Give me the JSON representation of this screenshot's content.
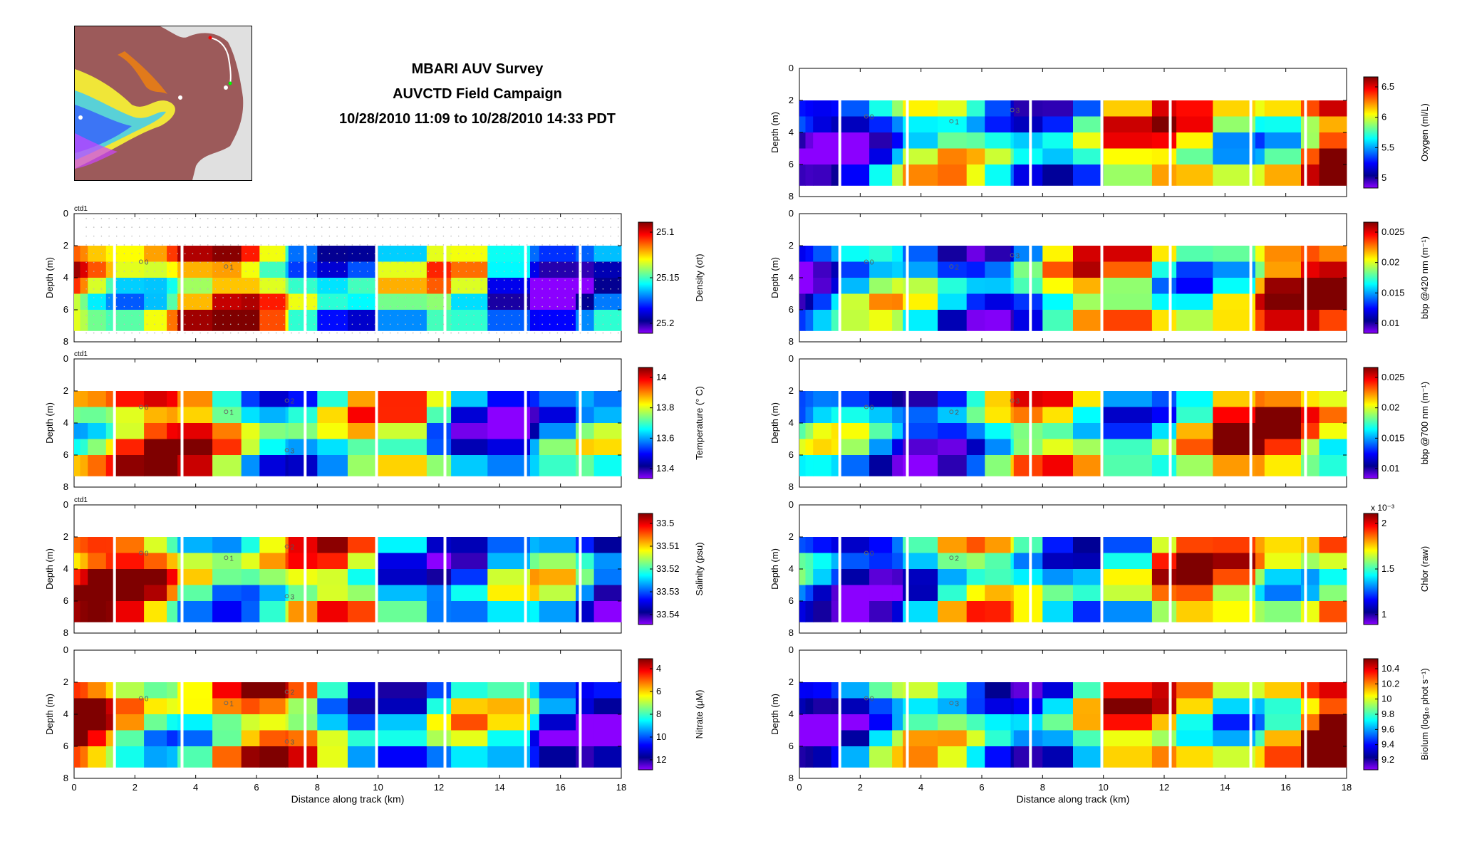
{
  "header": {
    "title_line1": "MBARI AUV Survey",
    "title_line2": "AUVCTD Field Campaign",
    "title_line3": "10/28/2010 11:09 to 10/28/2010 14:33 PDT"
  },
  "colors": {
    "colormap": [
      "#7f0000",
      "#ff0000",
      "#ff8000",
      "#ffff00",
      "#80ff80",
      "#00ffff",
      "#0080ff",
      "#0000ff",
      "#00008f",
      "#8b00ff"
    ],
    "land": "#e0e0e0",
    "sea_base": "#9c5a5a"
  },
  "chart_data": [
    {
      "type": "heatmap",
      "column": "left",
      "tag": "ctd1",
      "xlabel": "",
      "ylabel": "Depth (m)",
      "xlim": [
        0,
        18
      ],
      "ylim": [
        8,
        0
      ],
      "yticks": [
        "0",
        "2",
        "4",
        "6",
        "8"
      ],
      "colorbar_label": "Density (σt)",
      "colorbar_ticks": [
        "25.1",
        "25.15",
        "25.2"
      ],
      "colorbar_exponent": "",
      "scatter_overlay": true,
      "waypoints": [
        "0",
        "1"
      ]
    },
    {
      "type": "heatmap",
      "column": "left",
      "tag": "ctd1",
      "xlabel": "",
      "ylabel": "Depth (m)",
      "xlim": [
        0,
        18
      ],
      "ylim": [
        8,
        0
      ],
      "yticks": [
        "0",
        "2",
        "4",
        "6",
        "8"
      ],
      "colorbar_label": "Temperature (° C)",
      "colorbar_ticks": [
        "14",
        "13.8",
        "13.6",
        "13.4"
      ],
      "colorbar_exponent": "",
      "scatter_overlay": false,
      "waypoints": [
        "0",
        "1",
        "2",
        "3"
      ]
    },
    {
      "type": "heatmap",
      "column": "left",
      "tag": "ctd1",
      "xlabel": "",
      "ylabel": "Depth (m)",
      "xlim": [
        0,
        18
      ],
      "ylim": [
        8,
        0
      ],
      "yticks": [
        "0",
        "2",
        "4",
        "6",
        "8"
      ],
      "colorbar_label": "Salinity (psu)",
      "colorbar_ticks": [
        "33.5",
        "33.51",
        "33.52",
        "33.53",
        "33.54"
      ],
      "colorbar_exponent": "",
      "scatter_overlay": false,
      "waypoints": [
        "0",
        "1",
        "2",
        "3"
      ]
    },
    {
      "type": "heatmap",
      "column": "left",
      "tag": "",
      "xlabel": "Distance along track (km)",
      "ylabel": "Depth (m)",
      "xlim": [
        0,
        18
      ],
      "ylim": [
        8,
        0
      ],
      "xticks": [
        "0",
        "2",
        "4",
        "6",
        "8",
        "10",
        "12",
        "14",
        "16",
        "18"
      ],
      "yticks": [
        "0",
        "2",
        "4",
        "6",
        "8"
      ],
      "colorbar_label": "Nitrate (µM)",
      "colorbar_ticks": [
        "4",
        "6",
        "8",
        "10",
        "12"
      ],
      "colorbar_exponent": "",
      "scatter_overlay": false,
      "waypoints": [
        "0",
        "1",
        "2",
        "3"
      ]
    },
    {
      "type": "heatmap",
      "column": "right",
      "tag": "",
      "xlabel": "",
      "ylabel": "Depth (m)",
      "xlim": [
        0,
        18
      ],
      "ylim": [
        8,
        0
      ],
      "yticks": [
        "0",
        "2",
        "4",
        "6",
        "8"
      ],
      "colorbar_label": "Oxygen (ml/L)",
      "colorbar_ticks": [
        "6.5",
        "6",
        "5.5",
        "5"
      ],
      "colorbar_exponent": "",
      "scatter_overlay": false,
      "waypoints": [
        "0",
        "1",
        "3"
      ]
    },
    {
      "type": "heatmap",
      "column": "right",
      "tag": "",
      "xlabel": "",
      "ylabel": "Depth (m)",
      "xlim": [
        0,
        18
      ],
      "ylim": [
        8,
        0
      ],
      "yticks": [
        "0",
        "2",
        "4",
        "6",
        "8"
      ],
      "colorbar_label": "bbp @420 nm (m⁻¹)",
      "colorbar_ticks": [
        "0.025",
        "0.02",
        "0.015",
        "0.01"
      ],
      "colorbar_exponent": "",
      "scatter_overlay": false,
      "waypoints": [
        "0",
        "2",
        "3"
      ]
    },
    {
      "type": "heatmap",
      "column": "right",
      "tag": "",
      "xlabel": "",
      "ylabel": "Depth (m)",
      "xlim": [
        0,
        18
      ],
      "ylim": [
        8,
        0
      ],
      "yticks": [
        "0",
        "2",
        "4",
        "6",
        "8"
      ],
      "colorbar_label": "bbp @700 nm (m⁻¹)",
      "colorbar_ticks": [
        "0.025",
        "0.02",
        "0.015",
        "0.01"
      ],
      "colorbar_exponent": "",
      "scatter_overlay": false,
      "waypoints": [
        "0",
        "2",
        "3"
      ]
    },
    {
      "type": "heatmap",
      "column": "right",
      "tag": "",
      "xlabel": "",
      "ylabel": "Depth (m)",
      "xlim": [
        0,
        18
      ],
      "ylim": [
        8,
        0
      ],
      "yticks": [
        "0",
        "2",
        "4",
        "6",
        "8"
      ],
      "colorbar_label": "Chlor (raw)",
      "colorbar_ticks": [
        "2",
        "1.5",
        "1"
      ],
      "colorbar_exponent": "x 10⁻³",
      "scatter_overlay": false,
      "waypoints": [
        "0",
        "2"
      ]
    },
    {
      "type": "heatmap",
      "column": "right",
      "tag": "",
      "xlabel": "Distance along track (km)",
      "ylabel": "Depth (m)",
      "xlim": [
        0,
        18
      ],
      "ylim": [
        8,
        0
      ],
      "xticks": [
        "0",
        "2",
        "4",
        "6",
        "8",
        "10",
        "12",
        "14",
        "16",
        "18"
      ],
      "yticks": [
        "0",
        "2",
        "4",
        "6",
        "8"
      ],
      "colorbar_label": "Biolum (log₁₀ phot s⁻¹)",
      "colorbar_ticks": [
        "10.4",
        "10.2",
        "10",
        "9.8",
        "9.6",
        "9.4",
        "9.2"
      ],
      "colorbar_exponent": "",
      "scatter_overlay": false,
      "waypoints": [
        "0",
        "3"
      ]
    }
  ]
}
